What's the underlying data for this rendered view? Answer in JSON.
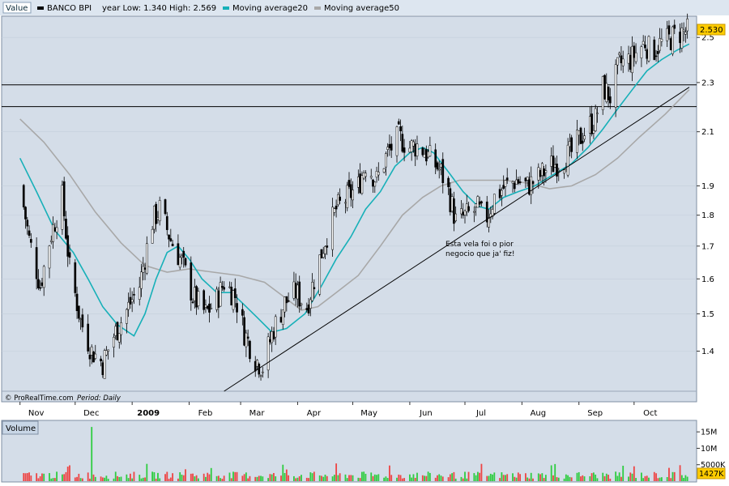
{
  "chart_data": [
    {
      "type": "candlestick",
      "legend": [
        {
          "label": "Value",
          "color": "#0a2a3a"
        },
        {
          "label": "BANCO BPI",
          "color": "#000000"
        },
        {
          "label": "year Low: 1.340 High: 2.569",
          "color": "#000000"
        },
        {
          "label": "Moving average20",
          "color": "#17b0b8"
        },
        {
          "label": "Moving average50",
          "color": "#a8a8a8"
        }
      ],
      "year_low": 1.34,
      "year_high": 2.569,
      "last_price_label": "2.530",
      "last_price": 2.53,
      "y_ticks": [
        1.4,
        1.5,
        1.6,
        1.7,
        1.8,
        1.9,
        2.1,
        2.3,
        2.5
      ],
      "ylim": [
        1.3,
        2.6
      ],
      "y_scale": "log",
      "x_month_labels": [
        "Nov",
        "Dec",
        "2009",
        "Feb",
        "Mar",
        "Apr",
        "May",
        "Jun",
        "Jul",
        "Aug",
        "Sep",
        "Oct"
      ],
      "horizontal_lines": [
        2.29,
        2.2
      ],
      "trendline": {
        "from": [
          "2009-02-20",
          1.3
        ],
        "to": [
          "2009-10-31",
          2.28
        ]
      },
      "annotation": {
        "lines": [
          "Esta vela foi o pior",
          "negocio que ja' fiz!"
        ]
      },
      "credit": "© ProRealTime.com",
      "period_label": "Period: Daily",
      "price_path": [
        [
          "2008-11-01",
          1.9
        ],
        [
          "2008-11-06",
          1.72
        ],
        [
          "2008-11-12",
          1.58
        ],
        [
          "2008-11-18",
          1.74
        ],
        [
          "2008-11-24",
          1.86
        ],
        [
          "2008-11-28",
          1.63
        ],
        [
          "2008-12-04",
          1.48
        ],
        [
          "2008-12-10",
          1.4
        ],
        [
          "2008-12-16",
          1.37
        ],
        [
          "2008-12-22",
          1.44
        ],
        [
          "2008-12-30",
          1.52
        ],
        [
          "2009-01-05",
          1.58
        ],
        [
          "2009-01-12",
          1.78
        ],
        [
          "2009-01-16",
          1.82
        ],
        [
          "2009-01-22",
          1.72
        ],
        [
          "2009-01-28",
          1.65
        ],
        [
          "2009-02-03",
          1.55
        ],
        [
          "2009-02-10",
          1.5
        ],
        [
          "2009-02-16",
          1.54
        ],
        [
          "2009-02-20",
          1.59
        ],
        [
          "2009-02-26",
          1.55
        ],
        [
          "2009-03-03",
          1.45
        ],
        [
          "2009-03-09",
          1.38
        ],
        [
          "2009-03-13",
          1.36
        ],
        [
          "2009-03-19",
          1.46
        ],
        [
          "2009-03-25",
          1.53
        ],
        [
          "2009-03-31",
          1.56
        ],
        [
          "2009-04-06",
          1.52
        ],
        [
          "2009-04-10",
          1.6
        ],
        [
          "2009-04-16",
          1.72
        ],
        [
          "2009-04-22",
          1.82
        ],
        [
          "2009-04-28",
          1.86
        ],
        [
          "2009-05-04",
          1.9
        ],
        [
          "2009-05-08",
          1.98
        ],
        [
          "2009-05-14",
          1.92
        ],
        [
          "2009-05-20",
          2.02
        ],
        [
          "2009-05-26",
          2.08
        ],
        [
          "2009-06-01",
          2.04
        ],
        [
          "2009-06-06",
          2.05
        ],
        [
          "2009-06-12",
          2.0
        ],
        [
          "2009-06-18",
          1.95
        ],
        [
          "2009-06-22",
          1.88
        ],
        [
          "2009-06-26",
          1.78
        ],
        [
          "2009-07-02",
          1.8
        ],
        [
          "2009-07-08",
          1.82
        ],
        [
          "2009-07-12",
          1.78
        ],
        [
          "2009-07-17",
          1.86
        ],
        [
          "2009-07-23",
          1.9
        ],
        [
          "2009-07-29",
          1.92
        ],
        [
          "2009-08-04",
          1.9
        ],
        [
          "2009-08-10",
          1.93
        ],
        [
          "2009-08-16",
          1.97
        ],
        [
          "2009-08-22",
          1.99
        ],
        [
          "2009-08-28",
          2.02
        ],
        [
          "2009-09-02",
          2.08
        ],
        [
          "2009-09-06",
          2.12
        ],
        [
          "2009-09-10",
          2.15
        ],
        [
          "2009-09-14",
          2.28
        ],
        [
          "2009-09-18",
          2.24
        ],
        [
          "2009-09-23",
          2.38
        ],
        [
          "2009-09-29",
          2.4
        ],
        [
          "2009-10-03",
          2.44
        ],
        [
          "2009-10-07",
          2.48
        ],
        [
          "2009-10-10",
          2.43
        ],
        [
          "2009-10-15",
          2.47
        ],
        [
          "2009-10-20",
          2.49
        ],
        [
          "2009-10-25",
          2.52
        ],
        [
          "2009-10-31",
          2.53
        ]
      ],
      "ma20_path": [
        [
          "2008-11-01",
          2.0
        ],
        [
          "2008-11-10",
          1.88
        ],
        [
          "2008-11-20",
          1.75
        ],
        [
          "2008-11-30",
          1.68
        ],
        [
          "2008-12-08",
          1.6
        ],
        [
          "2008-12-16",
          1.52
        ],
        [
          "2008-12-24",
          1.47
        ],
        [
          "2009-01-02",
          1.44
        ],
        [
          "2009-01-08",
          1.5
        ],
        [
          "2009-01-14",
          1.6
        ],
        [
          "2009-01-20",
          1.68
        ],
        [
          "2009-01-26",
          1.7
        ],
        [
          "2009-02-01",
          1.66
        ],
        [
          "2009-02-08",
          1.6
        ],
        [
          "2009-02-16",
          1.56
        ],
        [
          "2009-02-24",
          1.56
        ],
        [
          "2009-03-02",
          1.53
        ],
        [
          "2009-03-10",
          1.49
        ],
        [
          "2009-03-18",
          1.45
        ],
        [
          "2009-03-26",
          1.46
        ],
        [
          "2009-04-05",
          1.5
        ],
        [
          "2009-04-14",
          1.58
        ],
        [
          "2009-04-22",
          1.66
        ],
        [
          "2009-04-30",
          1.73
        ],
        [
          "2009-05-08",
          1.82
        ],
        [
          "2009-05-16",
          1.88
        ],
        [
          "2009-05-24",
          1.97
        ],
        [
          "2009-06-01",
          2.02
        ],
        [
          "2009-06-08",
          2.04
        ],
        [
          "2009-06-14",
          2.02
        ],
        [
          "2009-06-22",
          1.95
        ],
        [
          "2009-06-30",
          1.88
        ],
        [
          "2009-07-08",
          1.83
        ],
        [
          "2009-07-14",
          1.82
        ],
        [
          "2009-07-22",
          1.86
        ],
        [
          "2009-07-30",
          1.88
        ],
        [
          "2009-08-08",
          1.9
        ],
        [
          "2009-08-18",
          1.94
        ],
        [
          "2009-08-28",
          1.98
        ],
        [
          "2009-09-06",
          2.04
        ],
        [
          "2009-09-14",
          2.11
        ],
        [
          "2009-09-22",
          2.19
        ],
        [
          "2009-09-30",
          2.27
        ],
        [
          "2009-10-08",
          2.35
        ],
        [
          "2009-10-16",
          2.4
        ],
        [
          "2009-10-24",
          2.44
        ],
        [
          "2009-10-31",
          2.47
        ]
      ],
      "ma50_path": [
        [
          "2008-11-01",
          2.15
        ],
        [
          "2008-11-14",
          2.06
        ],
        [
          "2008-11-28",
          1.94
        ],
        [
          "2008-12-12",
          1.81
        ],
        [
          "2008-12-26",
          1.71
        ],
        [
          "2009-01-08",
          1.64
        ],
        [
          "2009-01-20",
          1.62
        ],
        [
          "2009-02-01",
          1.63
        ],
        [
          "2009-02-14",
          1.62
        ],
        [
          "2009-02-28",
          1.61
        ],
        [
          "2009-03-14",
          1.59
        ],
        [
          "2009-03-24",
          1.55
        ],
        [
          "2009-04-03",
          1.51
        ],
        [
          "2009-04-12",
          1.52
        ],
        [
          "2009-04-22",
          1.56
        ],
        [
          "2009-05-04",
          1.61
        ],
        [
          "2009-05-16",
          1.7
        ],
        [
          "2009-05-28",
          1.8
        ],
        [
          "2009-06-08",
          1.86
        ],
        [
          "2009-06-18",
          1.9
        ],
        [
          "2009-06-28",
          1.92
        ],
        [
          "2009-07-10",
          1.92
        ],
        [
          "2009-07-22",
          1.92
        ],
        [
          "2009-08-04",
          1.91
        ],
        [
          "2009-08-16",
          1.89
        ],
        [
          "2009-08-28",
          1.9
        ],
        [
          "2009-09-10",
          1.94
        ],
        [
          "2009-09-22",
          2.0
        ],
        [
          "2009-10-04",
          2.08
        ],
        [
          "2009-10-18",
          2.17
        ],
        [
          "2009-10-31",
          2.27
        ]
      ]
    },
    {
      "type": "bar",
      "title": "Volume",
      "y_ticks": [
        "15M",
        "10M",
        "5000K"
      ],
      "y_tick_values": [
        15000000,
        10000000,
        5000000
      ],
      "ylim": [
        0,
        18000000
      ],
      "last_value_label": "1427K",
      "last_value": 1427000,
      "spike_date": "2008-12-10",
      "spike_value": 16500000,
      "up_color": "#2ecc40",
      "down_color": "#ee4444"
    }
  ],
  "colors": {
    "plot_background": "#d4dde8",
    "header_background": "#dde6f0",
    "price_label_bg": "#ffcc00",
    "volume_label_bg": "#ffcc00",
    "volume_title_bg": "#c8d6e6",
    "ma20": "#17b0b8",
    "ma50": "#a8a8a8"
  }
}
